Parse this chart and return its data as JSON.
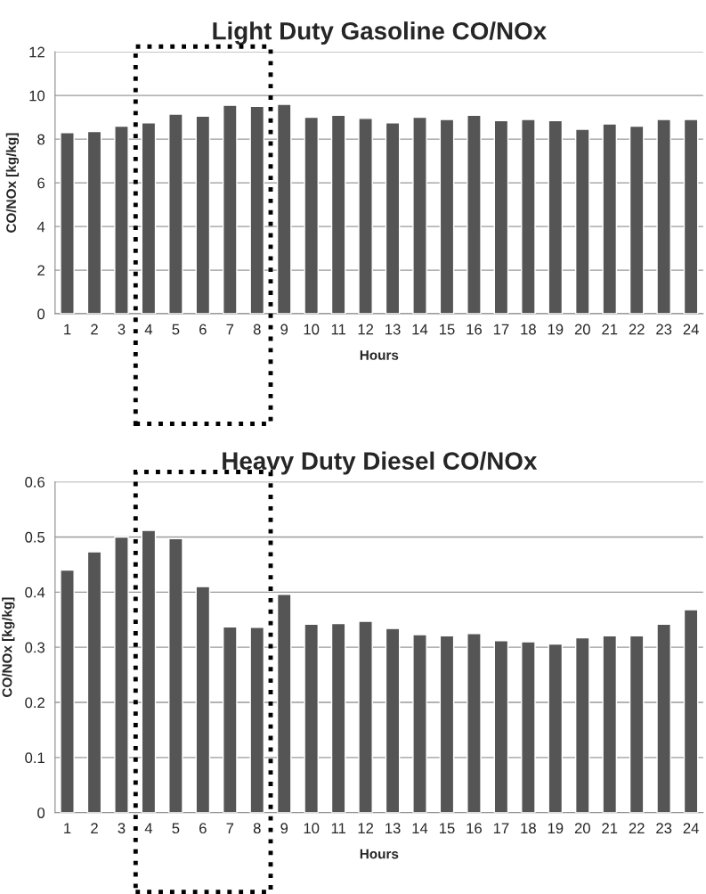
{
  "chart_data": [
    {
      "type": "bar",
      "title": "Light Duty Gasoline CO/NOx",
      "xlabel": "Hours",
      "ylabel": "CO/NOx [kg/kg]",
      "categories": [
        "1",
        "2",
        "3",
        "4",
        "5",
        "6",
        "7",
        "8",
        "9",
        "10",
        "11",
        "12",
        "13",
        "14",
        "15",
        "16",
        "17",
        "18",
        "19",
        "20",
        "21",
        "22",
        "23",
        "24"
      ],
      "series": [
        {
          "color": "#555555",
          "values": [
            8.3,
            8.35,
            8.6,
            8.75,
            9.15,
            9.05,
            9.55,
            9.5,
            9.6,
            9.0,
            9.1,
            8.95,
            8.75,
            9.0,
            8.9,
            9.1,
            8.85,
            8.9,
            8.85,
            8.45,
            8.7,
            8.6,
            8.9,
            8.9
          ]
        }
      ],
      "ylim": [
        0,
        12
      ],
      "yticks": [
        0,
        2,
        4,
        6,
        8,
        10,
        12
      ],
      "grid": "y"
    },
    {
      "type": "bar",
      "title": "Heavy Duty Diesel CO/NOx",
      "xlabel": "Hours",
      "ylabel": "CO/NOx [kg/kg]",
      "categories": [
        "1",
        "2",
        "3",
        "4",
        "5",
        "6",
        "7",
        "8",
        "9",
        "10",
        "11",
        "12",
        "13",
        "14",
        "15",
        "16",
        "17",
        "18",
        "19",
        "20",
        "21",
        "22",
        "23",
        "24"
      ],
      "series": [
        {
          "color": "#555555",
          "values": [
            0.44,
            0.473,
            0.5,
            0.512,
            0.497,
            0.41,
            0.337,
            0.336,
            0.396,
            0.342,
            0.343,
            0.347,
            0.334,
            0.323,
            0.321,
            0.325,
            0.312,
            0.31,
            0.306,
            0.317,
            0.321,
            0.321,
            0.342,
            0.368
          ]
        }
      ],
      "ylim": [
        0,
        0.6
      ],
      "yticks": [
        0,
        0.1,
        0.2,
        0.3,
        0.4,
        0.5,
        0.6
      ],
      "grid": "y"
    }
  ]
}
